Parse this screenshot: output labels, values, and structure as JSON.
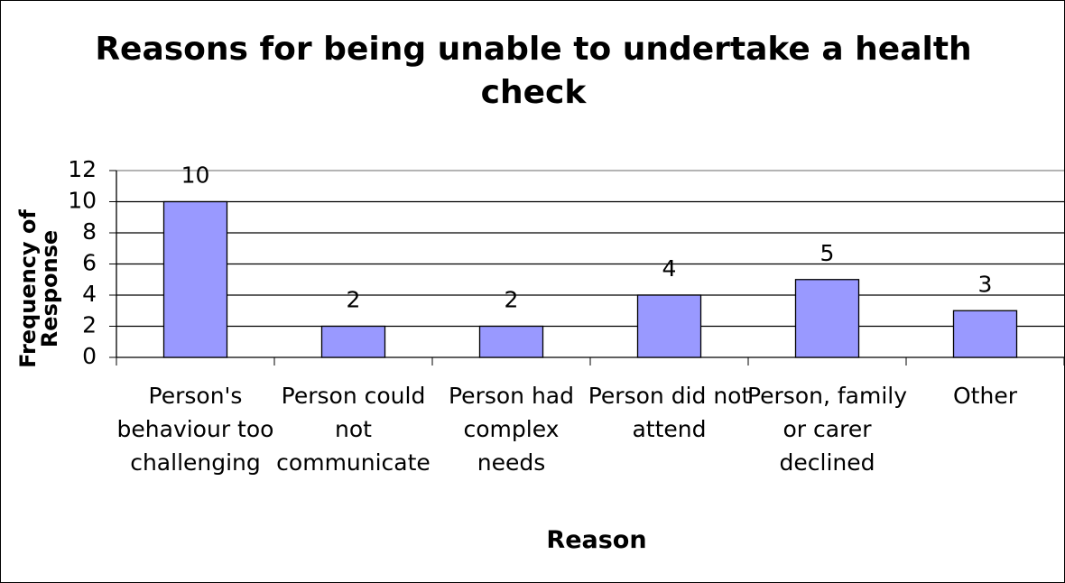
{
  "chart_data": {
    "type": "bar",
    "title": "Reasons for being unable to undertake a health check",
    "x_label": "Reason",
    "y_label": "Frequency of Response",
    "categories": [
      "Person's behaviour too challenging",
      "Person could not communicate",
      "Person had complex needs",
      "Person did not attend",
      "Person, family or carer declined",
      "Other"
    ],
    "values": [
      10,
      2,
      2,
      4,
      5,
      3
    ],
    "color": "#9999ff",
    "ylim": [
      0,
      12
    ],
    "yticks": [
      0,
      2,
      4,
      6,
      8,
      10,
      12
    ],
    "grid": true
  }
}
